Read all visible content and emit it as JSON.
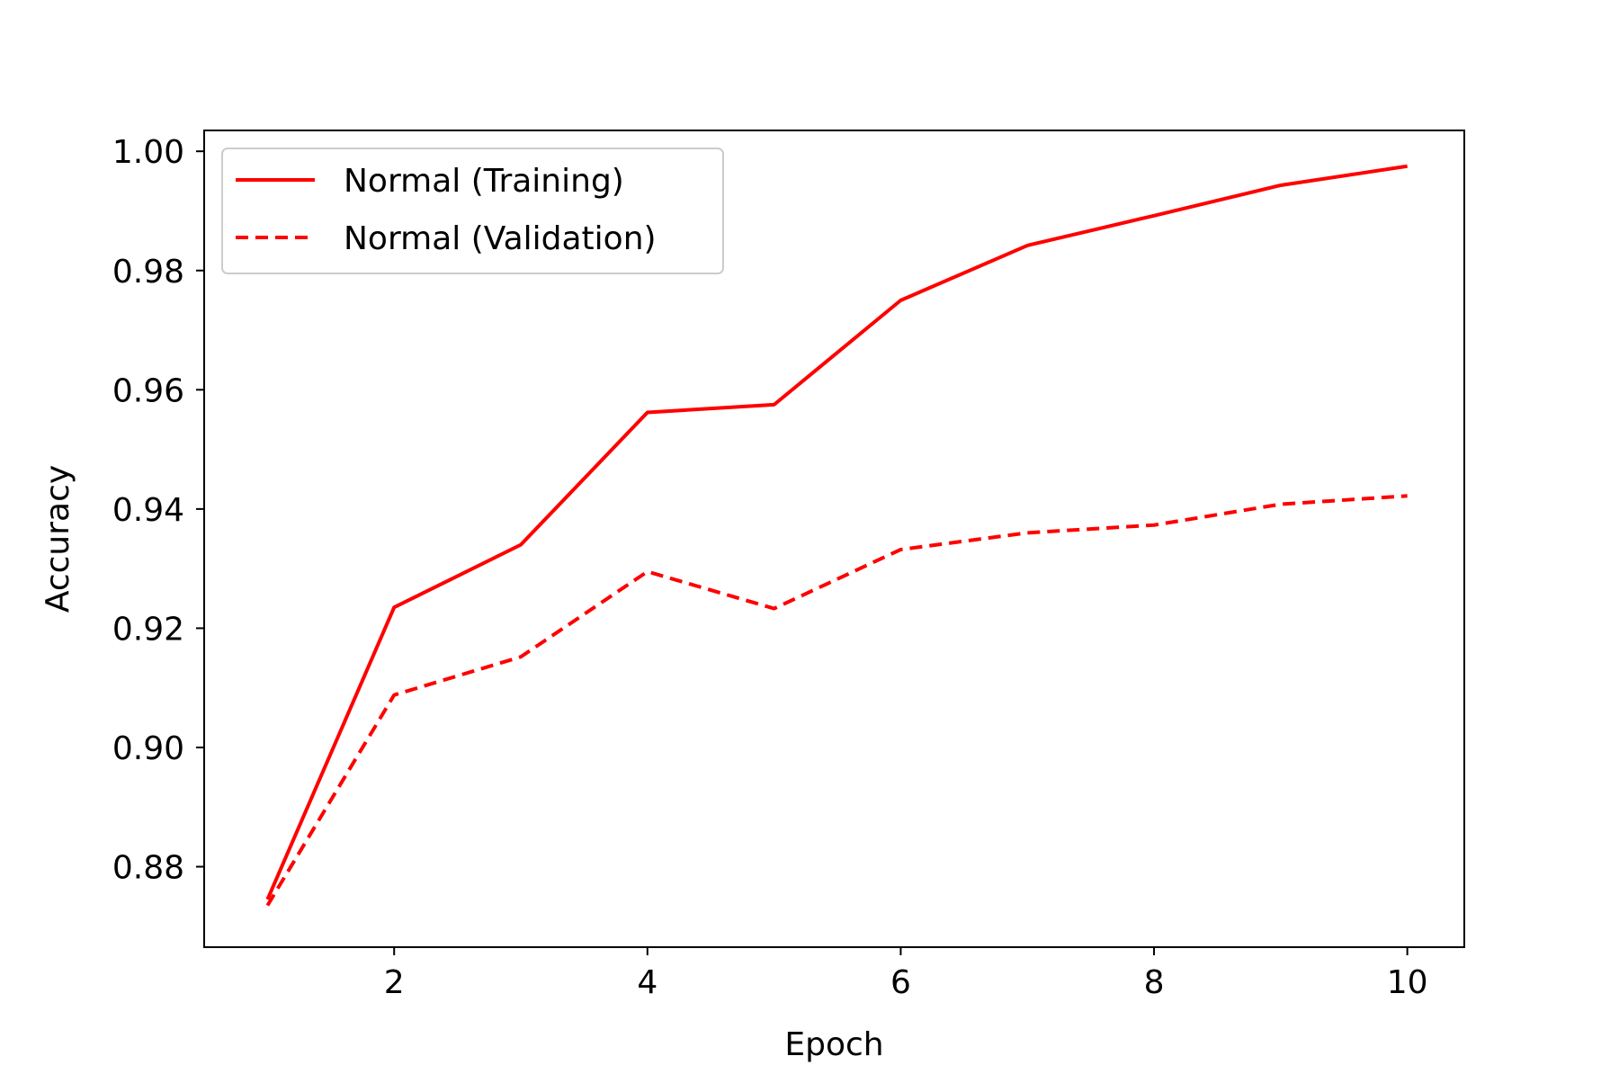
{
  "chart_data": {
    "type": "line",
    "xlabel": "Epoch",
    "ylabel": "Accuracy",
    "xlim": [
      0.5,
      10.45
    ],
    "ylim": [
      0.8665,
      1.0035
    ],
    "x_ticks": [
      2,
      4,
      6,
      8,
      10
    ],
    "x_tick_labels": [
      "2",
      "4",
      "6",
      "8",
      "10"
    ],
    "y_ticks": [
      0.88,
      0.9,
      0.92,
      0.94,
      0.96,
      0.98,
      1.0
    ],
    "y_tick_labels": [
      "0.88",
      "0.90",
      "0.92",
      "0.94",
      "0.96",
      "0.98",
      "1.00"
    ],
    "grid": false,
    "legend_position": "upper-left",
    "x": [
      1,
      2,
      3,
      4,
      5,
      6,
      7,
      8,
      9,
      10
    ],
    "series": [
      {
        "name": "Normal (Training)",
        "style": "solid",
        "color": "#ff0000",
        "values": [
          0.8745,
          0.9235,
          0.934,
          0.9562,
          0.9575,
          0.975,
          0.9842,
          0.9892,
          0.9943,
          0.9975
        ]
      },
      {
        "name": "Normal (Validation)",
        "style": "dashed",
        "color": "#ff0000",
        "values": [
          0.8735,
          0.9088,
          0.9152,
          0.9295,
          0.9233,
          0.9332,
          0.936,
          0.9373,
          0.9408,
          0.9422
        ]
      }
    ]
  }
}
